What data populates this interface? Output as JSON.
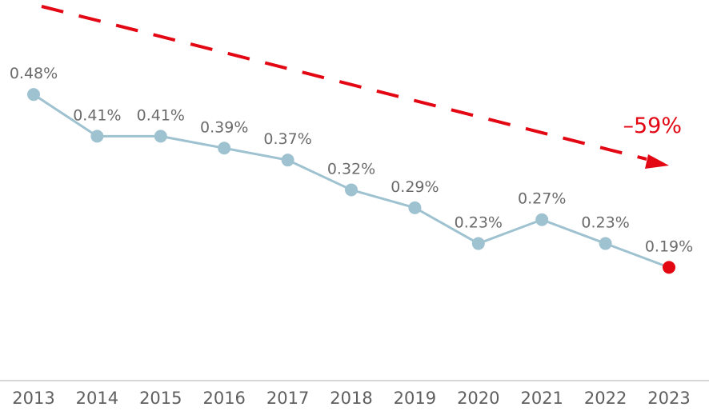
{
  "chart_data": {
    "type": "line",
    "title": "",
    "xlabel": "",
    "ylabel": "",
    "categories": [
      "2013",
      "2014",
      "2015",
      "2016",
      "2017",
      "2018",
      "2019",
      "2020",
      "2021",
      "2022",
      "2023"
    ],
    "values": [
      0.48,
      0.41,
      0.41,
      0.39,
      0.37,
      0.32,
      0.29,
      0.23,
      0.27,
      0.23,
      0.19
    ],
    "data_labels": [
      "0.48%",
      "0.41%",
      "0.41%",
      "0.39%",
      "0.37%",
      "0.32%",
      "0.29%",
      "0.23%",
      "0.27%",
      "0.23%",
      "0.19%"
    ],
    "ylim": [
      0,
      0.55
    ],
    "grid": false,
    "trend": {
      "label": "–59%",
      "direction": "down",
      "style": "dashed arrow"
    },
    "highlight_last_point": true
  },
  "colors": {
    "line": "#9fc2d1",
    "marker": "#9fc2d1",
    "highlight": "#e30613",
    "trend_arrow": "#e30613",
    "axis": "#c8c8c8",
    "label_text": "#6b6b6b",
    "tick_text": "#5f5f5f"
  }
}
